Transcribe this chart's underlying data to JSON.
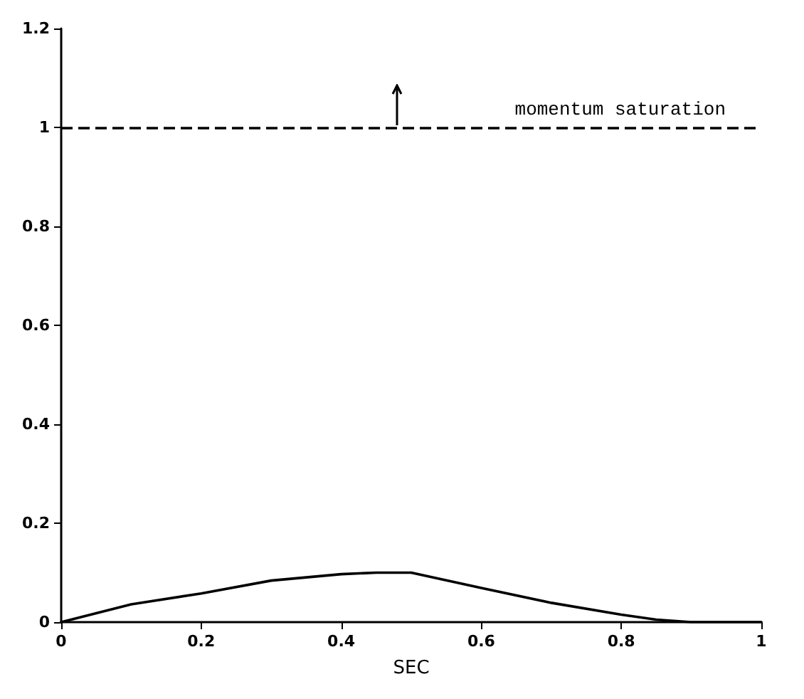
{
  "chart_data": {
    "type": "line",
    "xlabel": "SEC",
    "series": [
      {
        "color": "#000000",
        "x": [
          0,
          0.1,
          0.2,
          0.3,
          0.4,
          0.45,
          0.5,
          0.6,
          0.7,
          0.8,
          0.85,
          0.9,
          1
        ],
        "values": [
          0,
          0.036,
          0.058,
          0.084,
          0.097,
          0.1,
          0.1,
          0.069,
          0.039,
          0.015,
          0.005,
          0,
          0
        ]
      }
    ],
    "xlim": [
      0,
      1
    ],
    "xticks": [
      0,
      0.2,
      0.4,
      0.6,
      0.8,
      1
    ],
    "ylim": [
      0,
      1.2
    ],
    "yticks": [
      0,
      0.2,
      0.4,
      0.6,
      0.8,
      1,
      1.2
    ],
    "ref_lines": [
      {
        "axis": "y",
        "value": 1,
        "label": "momentum saturation",
        "color": "#000000",
        "line_style": "dashed"
      }
    ],
    "grid": false,
    "marker": "none",
    "line_style": "solid"
  }
}
